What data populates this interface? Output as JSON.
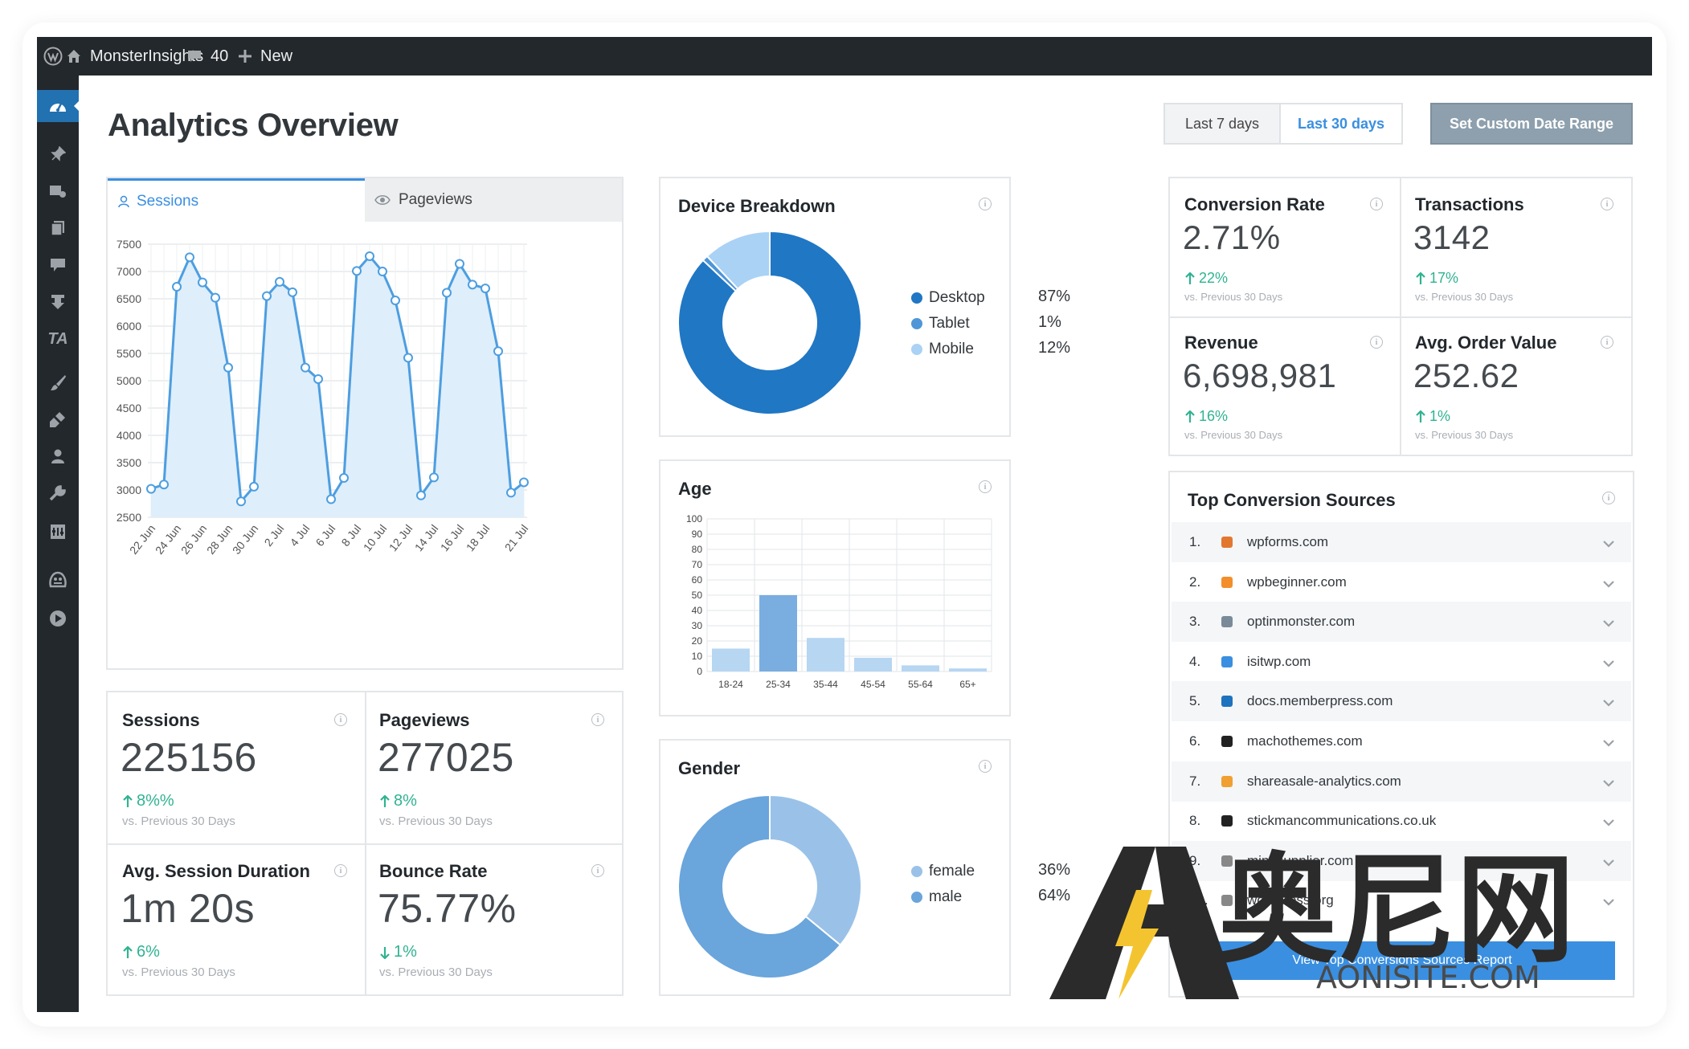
{
  "adminbar": {
    "site_name": "MonsterInsights",
    "comments_count": "40",
    "new_label": "New"
  },
  "menu_icons": [
    "dashboard-icon",
    "pin-icon",
    "media-icon",
    "pages-icon",
    "comments-icon",
    "download-icon",
    "ta-icon",
    "brush-icon",
    "plugins-icon",
    "users-icon",
    "tools-icon",
    "settings-icon",
    "insights-icon",
    "play-icon"
  ],
  "header": {
    "title": "Analytics Overview",
    "last7": "Last 7 days",
    "last30": "Last 30 days",
    "custom": "Set Custom Date Range"
  },
  "tabs": {
    "sessions": "Sessions",
    "pageviews": "Pageviews"
  },
  "chart_data": [
    {
      "type": "area",
      "title": "Sessions",
      "x": [
        "22 Jun",
        "23 Jun",
        "24 Jun",
        "25 Jun",
        "26 Jun",
        "27 Jun",
        "28 Jun",
        "29 Jun",
        "30 Jun",
        "1 Jul",
        "2 Jul",
        "3 Jul",
        "4 Jul",
        "5 Jul",
        "6 Jul",
        "7 Jul",
        "8 Jul",
        "9 Jul",
        "10 Jul",
        "11 Jul",
        "12 Jul",
        "13 Jul",
        "14 Jul",
        "15 Jul",
        "16 Jul",
        "17 Jul",
        "18 Jul",
        "19 Jul",
        "20 Jul",
        "21 Jul"
      ],
      "x_tick_labels": [
        "22 Jun",
        "24 Jun",
        "26 Jun",
        "28 Jun",
        "30 Jun",
        "2 Jul",
        "4 Jul",
        "6 Jul",
        "8 Jul",
        "10 Jul",
        "12 Jul",
        "14 Jul",
        "16 Jul",
        "18 Jul",
        "21 Jul"
      ],
      "values": [
        3020,
        3100,
        6720,
        7260,
        6800,
        6520,
        5240,
        2790,
        3060,
        6550,
        6810,
        6620,
        5240,
        5030,
        2830,
        3220,
        7010,
        7280,
        7000,
        6470,
        5420,
        2900,
        3230,
        6610,
        7140,
        6760,
        6690,
        5540,
        2950,
        3140
      ],
      "ylim": [
        2500,
        7500
      ],
      "yticks": [
        2500,
        3000,
        3500,
        4000,
        4500,
        5000,
        5500,
        6000,
        6500,
        7000,
        7500
      ],
      "grid": true
    },
    {
      "type": "pie",
      "title": "Device Breakdown",
      "categories": [
        "Desktop",
        "Tablet",
        "Mobile"
      ],
      "values": [
        87,
        1,
        12
      ],
      "colors": [
        "#2077c4",
        "#4f96d8",
        "#a9d2f5"
      ]
    },
    {
      "type": "bar",
      "title": "Age",
      "categories": [
        "18-24",
        "25-34",
        "35-44",
        "45-54",
        "55-64",
        "65+"
      ],
      "values": [
        15,
        50,
        22,
        9,
        4,
        2
      ],
      "colors": [
        "#b6d6f2",
        "#7aade0",
        "#b6d6f2",
        "#b6d6f2",
        "#b6d6f2",
        "#b6d6f2"
      ],
      "ylim": [
        0,
        100
      ],
      "yticks": [
        0,
        10,
        20,
        30,
        40,
        50,
        60,
        70,
        80,
        90,
        100
      ],
      "grid": true
    },
    {
      "type": "pie",
      "title": "Gender",
      "categories": [
        "female",
        "male"
      ],
      "values": [
        36,
        64
      ],
      "colors": [
        "#9ac2e8",
        "#6aa5dc"
      ]
    }
  ],
  "device": {
    "title": "Device Breakdown",
    "legend": [
      {
        "label": "Desktop",
        "pct": "87%",
        "color": "#2077c4"
      },
      {
        "label": "Tablet",
        "pct": "1%",
        "color": "#4f96d8"
      },
      {
        "label": "Mobile",
        "pct": "12%",
        "color": "#a9d2f5"
      }
    ]
  },
  "age": {
    "title": "Age"
  },
  "gender": {
    "title": "Gender",
    "legend": [
      {
        "label": "female",
        "pct": "36%",
        "color": "#9ac2e8"
      },
      {
        "label": "male",
        "pct": "64%",
        "color": "#6aa5dc"
      }
    ]
  },
  "overview_metrics": [
    {
      "label": "Sessions",
      "value": "225156",
      "change": "8%%",
      "direction": "up",
      "sub": "vs. Previous 30 Days"
    },
    {
      "label": "Pageviews",
      "value": "277025",
      "change": "8%",
      "direction": "up",
      "sub": "vs. Previous 30 Days"
    },
    {
      "label": "Avg. Session Duration",
      "value": "1m 20s",
      "change": "6%",
      "direction": "up",
      "sub": "vs. Previous 30 Days"
    },
    {
      "label": "Bounce Rate",
      "value": "75.77%",
      "change": "1%",
      "direction": "down",
      "sub": "vs. Previous 30 Days"
    }
  ],
  "ecommerce_metrics": [
    {
      "label": "Conversion Rate",
      "value": "2.71%",
      "change": "22%",
      "direction": "up",
      "sub": "vs. Previous 30 Days"
    },
    {
      "label": "Transactions",
      "value": "3142",
      "change": "17%",
      "direction": "up",
      "sub": "vs. Previous 30 Days"
    },
    {
      "label": "Revenue",
      "value": "6,698,981",
      "change": "16%",
      "direction": "up",
      "sub": "vs. Previous 30 Days"
    },
    {
      "label": "Avg. Order Value",
      "value": "252.62",
      "change": "1%",
      "direction": "up",
      "sub": "vs. Previous 30 Days"
    }
  ],
  "sources": {
    "title": "Top Conversion Sources",
    "items": [
      {
        "num": "1.",
        "name": "wpforms.com",
        "icon": "wpforms-icon",
        "color": "#e27730"
      },
      {
        "num": "2.",
        "name": "wpbeginner.com",
        "icon": "wpbeginner-icon",
        "color": "#f28f2c"
      },
      {
        "num": "3.",
        "name": "optinmonster.com",
        "icon": "optinmonster-icon",
        "color": "#7a8a99"
      },
      {
        "num": "4.",
        "name": "isitwp.com",
        "icon": "isitwp-icon",
        "color": "#3a8fe0"
      },
      {
        "num": "5.",
        "name": "docs.memberpress.com",
        "icon": "memberpress-icon",
        "color": "#1e73be"
      },
      {
        "num": "6.",
        "name": "machothemes.com",
        "icon": "machothemes-icon",
        "color": "#222222"
      },
      {
        "num": "7.",
        "name": "shareasale-analytics.com",
        "icon": "shareasale-icon",
        "color": "#f0a030"
      },
      {
        "num": "8.",
        "name": "stickmancommunications.co.uk",
        "icon": "stickman-icon",
        "color": "#222222"
      },
      {
        "num": "9.",
        "name": "mindsupplier.com",
        "icon": "site-icon",
        "color": "#888888"
      },
      {
        "num": "10.",
        "name": "wordpress.org",
        "icon": "site-icon",
        "color": "#888888"
      }
    ],
    "button": "View Top Conversions Sources Report"
  },
  "watermark": {
    "cn": "奥尼网",
    "en": "AONISITE.COM"
  }
}
